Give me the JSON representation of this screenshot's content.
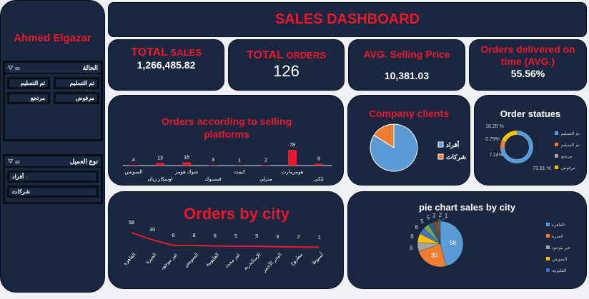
{
  "sidebar": {
    "user_name": "Ahmed Elgazar",
    "slicer_status": {
      "title": "الحالة",
      "items": [
        "تم التسليم",
        "تم التسليم",
        "مرفوض",
        "مرتجع"
      ]
    },
    "slicer_client": {
      "title": "نوع العميل",
      "items": [
        "أفراد",
        "شركات"
      ]
    }
  },
  "header": {
    "title": "SALES DASHBOARD"
  },
  "kpis": {
    "total_sales": {
      "label_a": "TOTAL",
      "label_b": " SALES",
      "value": "1,266,485.82"
    },
    "total_orders": {
      "label_a": "TOTAL",
      "label_b": " ORDERS",
      "value": "126"
    },
    "avg_price": {
      "label": "AVG. Selling Price",
      "value": "10,381.03"
    },
    "on_time": {
      "label": "Orders delivered on time (AVG.)",
      "value": "55.56%"
    }
  },
  "colors": {
    "panel": "#1b2640",
    "accent": "#e8192c",
    "bg": "#eef0f3"
  },
  "chart_data": [
    {
      "type": "bar",
      "title": "Orders according to selling platforms",
      "categories": [
        "السويس",
        "اوسكار ريان",
        "شوك هومز",
        "فيسبوك",
        "كيمت",
        "منزلي",
        "هومزمارت",
        "تلكي"
      ],
      "values": [
        4,
        13,
        16,
        3,
        1,
        2,
        78,
        9
      ],
      "color": "#e8192c"
    },
    {
      "type": "pie",
      "title": "Company clients",
      "categories": [
        "أفراد",
        "شركات"
      ],
      "values": [
        84,
        16
      ],
      "colors": [
        "#5b9bd5",
        "#ed7d31"
      ]
    },
    {
      "type": "pie",
      "title": "Order statues",
      "donut": true,
      "categories": [
        "تم التسليم",
        "تم التسليم",
        "مرتجع",
        "مرفوض"
      ],
      "values": [
        73.81,
        7.14,
        0.79,
        18.25
      ],
      "labels": [
        "73.81 %",
        "7.14%",
        "0.79%",
        "18.25 %"
      ],
      "colors": [
        "#5b9bd5",
        "#ed7d31",
        "#a5a5a5",
        "#ffc000"
      ]
    },
    {
      "type": "line",
      "title": "Orders by city",
      "categories": [
        "القاهرة",
        "الجيزة",
        "غير موجود",
        "السويس",
        "القليوبية",
        "غير محدد",
        "الإسكندرية",
        "البحر الأحمر",
        "مطروح",
        "أسيوط"
      ],
      "values": [
        58,
        30,
        8,
        8,
        6,
        5,
        5,
        3,
        2,
        1
      ],
      "color": "#e8192c"
    },
    {
      "type": "pie",
      "title": "pie chart sales by city",
      "categories": [
        "القاهرة",
        "الجيزة",
        "غير موجود",
        "السويس",
        "القليوبية",
        "غير محدد",
        "الإسكندرية",
        "البحر الأحمر",
        "مطروح",
        "أسيوط"
      ],
      "values": [
        58,
        30,
        8,
        8,
        6,
        5,
        5,
        3,
        2,
        1
      ],
      "legend": [
        "القاهرة",
        "الجيزة",
        "غير موجود",
        "السويس",
        "القليوبية"
      ],
      "colors": [
        "#5b9bd5",
        "#ed7d31",
        "#a5a5a5",
        "#ffc000",
        "#4472c4",
        "#70ad47",
        "#255e91",
        "#9e480e",
        "#636363",
        "#997300"
      ]
    }
  ]
}
